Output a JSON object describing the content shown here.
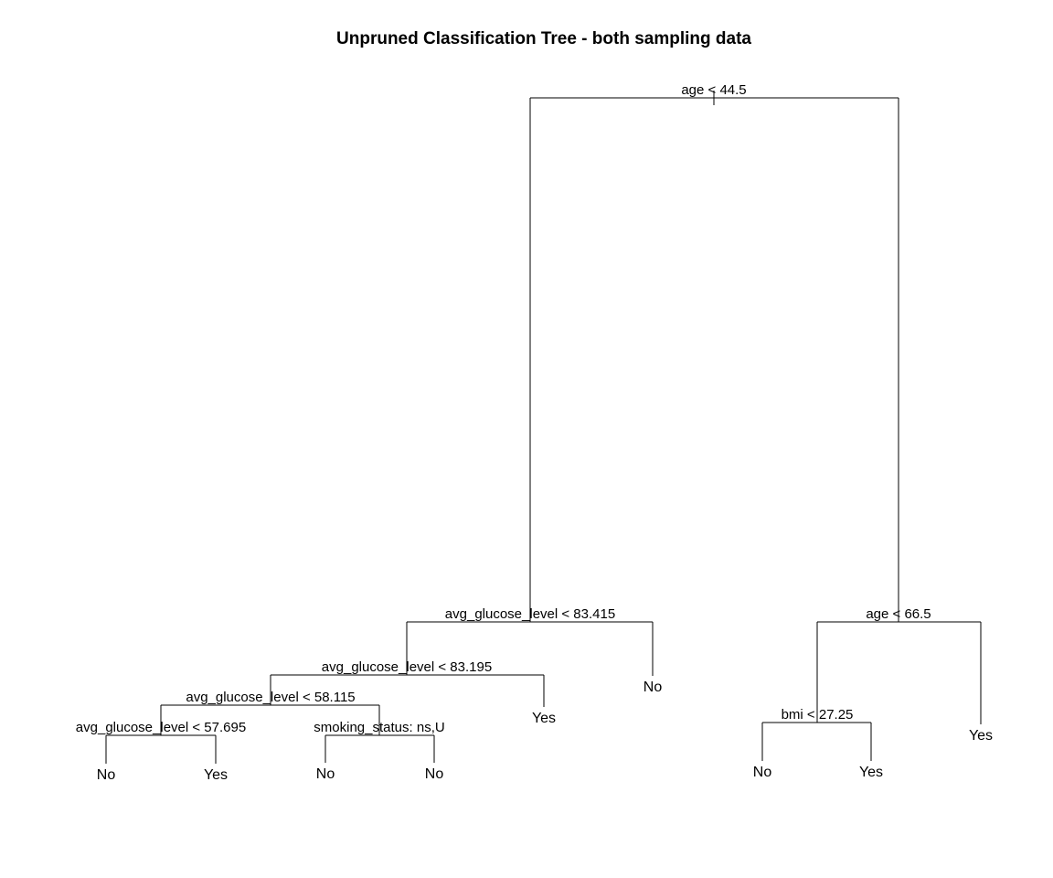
{
  "title": "Unpruned Classification Tree - both sampling data",
  "tree": {
    "split": "age < 44.5",
    "left": {
      "split": "avg_glucose_level < 83.415",
      "left": {
        "split": "avg_glucose_level < 83.195",
        "left": {
          "split": "avg_glucose_level < 58.115",
          "left": {
            "split": "avg_glucose_level < 57.695",
            "left": {
              "leaf": "No"
            },
            "right": {
              "leaf": "Yes"
            }
          },
          "right": {
            "split": "smoking_status: ns,U",
            "left": {
              "leaf": "No"
            },
            "right": {
              "leaf": "No"
            }
          }
        },
        "right": {
          "leaf": "Yes"
        }
      },
      "right": {
        "leaf": "No"
      }
    },
    "right": {
      "split": "age < 66.5",
      "left": {
        "split": "bmi < 27.25",
        "left": {
          "leaf": "No"
        },
        "right": {
          "leaf": "Yes"
        }
      },
      "right": {
        "leaf": "Yes"
      }
    }
  }
}
